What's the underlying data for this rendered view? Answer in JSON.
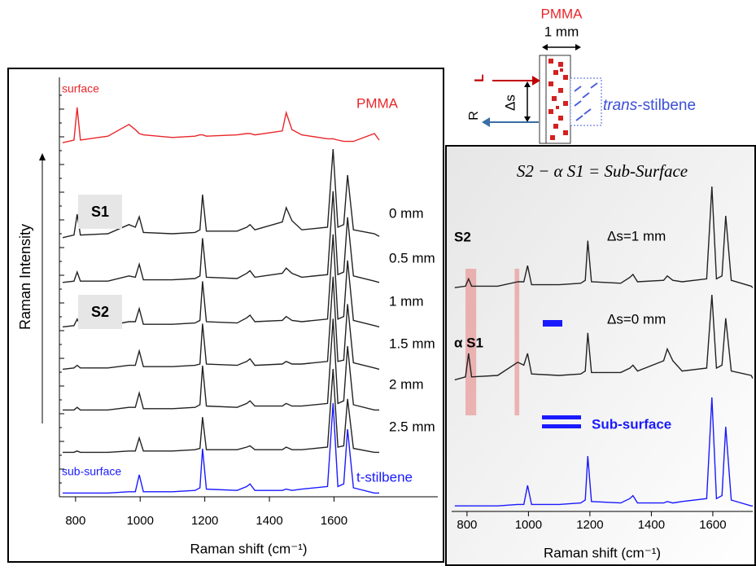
{
  "schematic": {
    "material": "PMMA",
    "thickness": "1 mm",
    "laser_in": "L",
    "raman_out": "R",
    "offset": "Δs",
    "sample_italic": "trans",
    "sample_rest": "-stilbene"
  },
  "chart_data": [
    {
      "type": "line",
      "xlabel": "Raman shift (cm⁻¹)",
      "ylabel": "Raman Intensity",
      "xlim": [
        750,
        1750
      ],
      "xticks": [
        800,
        1000,
        1200,
        1400,
        1600
      ],
      "ylim": [
        0,
        7.5
      ],
      "x": [
        760,
        795,
        805,
        815,
        900,
        965,
        985,
        997,
        1010,
        1100,
        1170,
        1185,
        1193,
        1205,
        1300,
        1330,
        1340,
        1355,
        1440,
        1452,
        1470,
        1500,
        1580,
        1597,
        1612,
        1630,
        1642,
        1660,
        1725,
        1740
      ],
      "series": [
        {
          "name": "PMMA",
          "left_label": "surface",
          "color": "#e8262a",
          "values": [
            0.3,
            0.5,
            3.0,
            0.5,
            0.8,
            1.7,
            1.3,
            1.0,
            0.9,
            0.7,
            0.8,
            0.9,
            0.9,
            0.8,
            0.9,
            1.0,
            1.0,
            0.9,
            1.2,
            2.6,
            1.3,
            0.9,
            0.6,
            0.6,
            0.5,
            0.4,
            0.4,
            0.4,
            1.0,
            0.5
          ]
        },
        {
          "name": "0 mm",
          "color": "#222222",
          "values": [
            0.2,
            0.4,
            2.0,
            0.4,
            0.5,
            1.2,
            1.0,
            1.8,
            0.6,
            0.5,
            0.6,
            0.8,
            3.5,
            0.7,
            0.7,
            1.0,
            1.2,
            0.8,
            1.4,
            2.5,
            1.5,
            0.8,
            1.0,
            7.0,
            1.0,
            1.2,
            5.0,
            0.8,
            0.5,
            0.3
          ]
        },
        {
          "name": "0.5 mm",
          "color": "#222222",
          "values": [
            0.2,
            0.3,
            1.0,
            0.3,
            0.3,
            0.7,
            0.6,
            1.6,
            0.4,
            0.4,
            0.5,
            0.7,
            3.6,
            0.6,
            0.5,
            0.9,
            1.1,
            0.6,
            0.9,
            1.3,
            0.9,
            0.6,
            0.8,
            7.2,
            0.8,
            1.0,
            5.2,
            0.7,
            0.3,
            0.2
          ]
        },
        {
          "name": "1 mm",
          "color": "#222222",
          "values": [
            0.1,
            0.2,
            0.7,
            0.2,
            0.2,
            0.5,
            0.5,
            1.5,
            0.3,
            0.3,
            0.4,
            0.6,
            3.6,
            0.5,
            0.4,
            0.8,
            1.0,
            0.5,
            0.6,
            0.9,
            0.6,
            0.5,
            0.7,
            7.2,
            0.7,
            0.9,
            5.2,
            0.6,
            0.2,
            0.1
          ]
        },
        {
          "name": "1.5 mm",
          "color": "#222222",
          "values": [
            0.1,
            0.2,
            0.4,
            0.2,
            0.2,
            0.4,
            0.4,
            1.5,
            0.3,
            0.3,
            0.4,
            0.5,
            3.6,
            0.5,
            0.4,
            0.7,
            0.9,
            0.4,
            0.5,
            0.7,
            0.5,
            0.5,
            0.7,
            7.2,
            0.7,
            0.8,
            5.1,
            0.6,
            0.2,
            0.1
          ]
        },
        {
          "name": "2 mm",
          "color": "#222222",
          "values": [
            0.1,
            0.1,
            0.3,
            0.1,
            0.1,
            0.3,
            0.3,
            1.4,
            0.2,
            0.2,
            0.3,
            0.5,
            3.5,
            0.4,
            0.3,
            0.6,
            0.8,
            0.4,
            0.4,
            0.6,
            0.4,
            0.4,
            0.6,
            7.1,
            0.6,
            0.8,
            5.0,
            0.5,
            0.1,
            0.1
          ]
        },
        {
          "name": "2.5 mm",
          "color": "#222222",
          "values": [
            0.1,
            0.1,
            0.2,
            0.1,
            0.1,
            0.2,
            0.2,
            1.2,
            0.2,
            0.2,
            0.3,
            0.4,
            2.8,
            0.3,
            0.3,
            0.5,
            0.6,
            0.3,
            0.3,
            0.5,
            0.3,
            0.3,
            0.5,
            6.5,
            0.5,
            0.6,
            4.2,
            0.4,
            0.1,
            0.1
          ]
        },
        {
          "name": "t-stilbene",
          "left_label": "sub-surface",
          "color": "#1a1aff",
          "values": [
            0.1,
            0.1,
            0.1,
            0.1,
            0.1,
            0.2,
            0.2,
            1.5,
            0.2,
            0.2,
            0.3,
            0.5,
            3.5,
            0.4,
            0.3,
            0.6,
            0.8,
            0.3,
            0.3,
            0.4,
            0.3,
            0.4,
            0.6,
            7.0,
            0.6,
            0.8,
            5.0,
            0.5,
            0.1,
            0.1
          ]
        }
      ],
      "annotations": [
        "S1",
        "S2"
      ]
    },
    {
      "type": "line",
      "title": "S2 − α S1 = Sub-Surface",
      "xlabel": "Raman shift (cm⁻¹)",
      "xlim": [
        750,
        1730
      ],
      "xticks": [
        800,
        1000,
        1200,
        1400,
        1600
      ],
      "ylim": [
        0,
        7.5
      ],
      "highlight_ranges": [
        [
          795,
          830
        ],
        [
          955,
          970
        ]
      ],
      "x": [
        760,
        795,
        805,
        815,
        900,
        965,
        985,
        997,
        1010,
        1100,
        1170,
        1185,
        1193,
        1205,
        1300,
        1330,
        1340,
        1355,
        1440,
        1452,
        1470,
        1500,
        1580,
        1597,
        1612,
        1630,
        1642,
        1660,
        1725,
        1730
      ],
      "series": [
        {
          "name": "S2",
          "label": "Δs=1 mm",
          "color": "#222222",
          "values": [
            0.1,
            0.2,
            0.7,
            0.2,
            0.2,
            0.5,
            0.5,
            1.6,
            0.3,
            0.3,
            0.4,
            0.6,
            3.3,
            0.5,
            0.4,
            0.8,
            1.0,
            0.5,
            0.6,
            0.9,
            0.6,
            0.5,
            0.7,
            7.0,
            0.7,
            0.9,
            5.0,
            0.6,
            0.2,
            0.1
          ]
        },
        {
          "name": "α S1",
          "label": "Δs=0 mm",
          "color": "#222222",
          "values": [
            0.2,
            0.4,
            2.0,
            0.4,
            0.5,
            1.4,
            1.2,
            2.0,
            0.6,
            0.5,
            0.6,
            0.8,
            3.4,
            0.7,
            0.7,
            1.0,
            1.2,
            0.8,
            1.5,
            2.3,
            1.5,
            0.8,
            1.0,
            6.0,
            1.0,
            1.2,
            4.4,
            0.8,
            0.5,
            0.3
          ]
        },
        {
          "name": "Sub-surface",
          "color": "#1a1aff",
          "values": [
            0.1,
            0.1,
            0.1,
            0.1,
            0.1,
            0.2,
            0.2,
            1.5,
            0.2,
            0.2,
            0.3,
            0.5,
            3.5,
            0.4,
            0.3,
            0.6,
            0.8,
            0.3,
            0.3,
            0.4,
            0.3,
            0.4,
            0.6,
            7.5,
            0.6,
            0.8,
            5.5,
            0.5,
            0.1,
            0.1
          ]
        }
      ]
    }
  ]
}
